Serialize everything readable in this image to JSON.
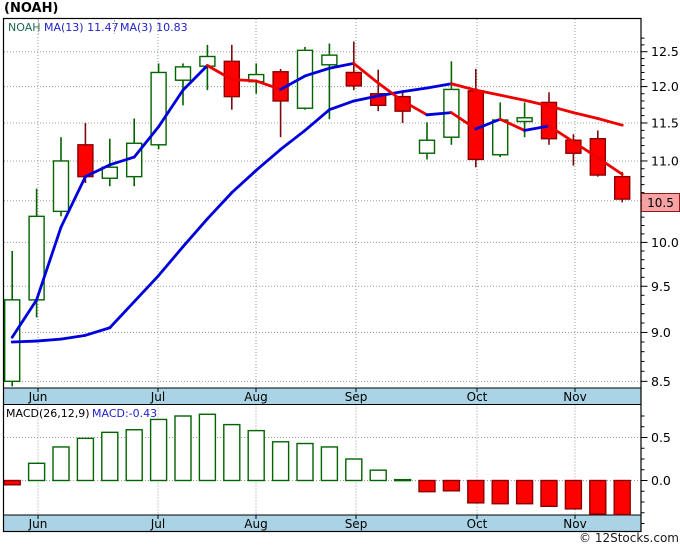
{
  "title": "(NOAH)",
  "watermark": "© 12Stocks.com",
  "price_panel": {
    "symbol_label": "NOAH",
    "ma13_label": "MA(13)  11.47",
    "ma3_label": "MA(3)  10.83",
    "current_price_marker": "10.5"
  },
  "macd_panel": {
    "label": "MACD(26,12,9)",
    "value_label": "MACD:-0.43"
  },
  "colors": {
    "up_candle_border": "#006400",
    "up_candle_fill": "#ffffff",
    "down_candle_fill": "#ff0000",
    "down_candle_border": "#8b0000",
    "ma_rising": "#0000dd",
    "ma_falling": "#ee0000",
    "grid": "#9a9a9a",
    "month_band": "#aad4e5",
    "marker_fill": "#f7a2a2",
    "marker_border": "#8b1a1a",
    "legend_blue": "#2222cc",
    "symbol_green": "#1d6a52"
  },
  "chart_data": {
    "type": "candlestick+macd",
    "symbol": "NOAH",
    "interval": "weekly",
    "months": [
      "Jun",
      "Jul",
      "Aug",
      "Sep",
      "Oct",
      "Nov"
    ],
    "month_x": [
      38,
      158,
      256,
      356,
      477,
      575
    ],
    "price_axis": {
      "scale": "log",
      "major_ticks": [
        12.5,
        12.0,
        11.5,
        11.0,
        10.5,
        10.0,
        9.5,
        9.0,
        8.5
      ],
      "minor_step": 0.1,
      "range_min": 8.44,
      "range_max": 12.67,
      "last_price_marker": 10.5
    },
    "candles": [
      {
        "o": 8.5,
        "h": 9.9,
        "l": 8.45,
        "c": 9.35
      },
      {
        "o": 9.35,
        "h": 10.65,
        "l": 9.16,
        "c": 10.31
      },
      {
        "o": 10.37,
        "h": 11.31,
        "l": 10.31,
        "c": 11.0
      },
      {
        "o": 11.21,
        "h": 11.5,
        "l": 10.72,
        "c": 10.8
      },
      {
        "o": 10.78,
        "h": 11.29,
        "l": 10.68,
        "c": 10.92
      },
      {
        "o": 10.8,
        "h": 11.56,
        "l": 10.68,
        "c": 11.23
      },
      {
        "o": 11.21,
        "h": 12.33,
        "l": 11.15,
        "c": 12.2
      },
      {
        "o": 12.09,
        "h": 12.33,
        "l": 11.74,
        "c": 12.28
      },
      {
        "o": 12.29,
        "h": 12.6,
        "l": 11.95,
        "c": 12.43
      },
      {
        "o": 12.36,
        "h": 12.6,
        "l": 11.68,
        "c": 11.86
      },
      {
        "o": 12.07,
        "h": 12.33,
        "l": 11.9,
        "c": 12.17
      },
      {
        "o": 12.21,
        "h": 12.25,
        "l": 11.31,
        "c": 11.8
      },
      {
        "o": 11.7,
        "h": 12.57,
        "l": 11.68,
        "c": 12.52
      },
      {
        "o": 12.31,
        "h": 12.62,
        "l": 11.55,
        "c": 12.45
      },
      {
        "o": 12.2,
        "h": 12.65,
        "l": 11.95,
        "c": 12.01
      },
      {
        "o": 11.9,
        "h": 12.24,
        "l": 11.66,
        "c": 11.74
      },
      {
        "o": 11.86,
        "h": 11.93,
        "l": 11.5,
        "c": 11.66
      },
      {
        "o": 11.1,
        "h": 11.51,
        "l": 11.02,
        "c": 11.27
      },
      {
        "o": 11.31,
        "h": 12.36,
        "l": 11.21,
        "c": 11.96
      },
      {
        "o": 11.94,
        "h": 12.25,
        "l": 10.92,
        "c": 11.02
      },
      {
        "o": 11.08,
        "h": 11.78,
        "l": 11.05,
        "c": 11.54
      },
      {
        "o": 11.52,
        "h": 11.78,
        "l": 11.31,
        "c": 11.57
      },
      {
        "o": 11.78,
        "h": 11.92,
        "l": 11.21,
        "c": 11.29
      },
      {
        "o": 11.27,
        "h": 11.35,
        "l": 10.94,
        "c": 11.1
      },
      {
        "o": 11.29,
        "h": 11.4,
        "l": 10.8,
        "c": 10.82
      },
      {
        "o": 10.8,
        "h": 10.86,
        "l": 10.48,
        "c": 10.52
      }
    ],
    "ma3": {
      "period": 3,
      "current": 10.83,
      "values": [
        8.95,
        9.35,
        10.18,
        10.8,
        10.95,
        11.05,
        11.45,
        11.95,
        12.3,
        12.1,
        12.08,
        11.96,
        12.15,
        12.26,
        12.33,
        12.05,
        11.8,
        11.61,
        11.64,
        11.42,
        11.55,
        11.4,
        11.46,
        11.25,
        11.04,
        10.83
      ]
    },
    "ma13": {
      "period": 13,
      "current": 11.47,
      "values": [
        8.9,
        8.91,
        8.93,
        8.97,
        9.05,
        9.33,
        9.62,
        9.95,
        10.28,
        10.6,
        10.88,
        11.15,
        11.4,
        11.68,
        11.8,
        11.87,
        11.93,
        11.98,
        12.04,
        11.95,
        11.88,
        11.81,
        11.73,
        11.64,
        11.56,
        11.47
      ]
    },
    "macd": {
      "params": "26,12,9",
      "current": -0.43,
      "axis_major_ticks": [
        0.5,
        0.0
      ],
      "axis_minor_step": 0.125,
      "values": [
        -0.05,
        0.2,
        0.39,
        0.49,
        0.56,
        0.59,
        0.71,
        0.75,
        0.77,
        0.65,
        0.58,
        0.45,
        0.43,
        0.39,
        0.25,
        0.12,
        0.01,
        -0.13,
        -0.12,
        -0.26,
        -0.27,
        -0.27,
        -0.3,
        -0.33,
        -0.39,
        -0.43
      ]
    }
  }
}
